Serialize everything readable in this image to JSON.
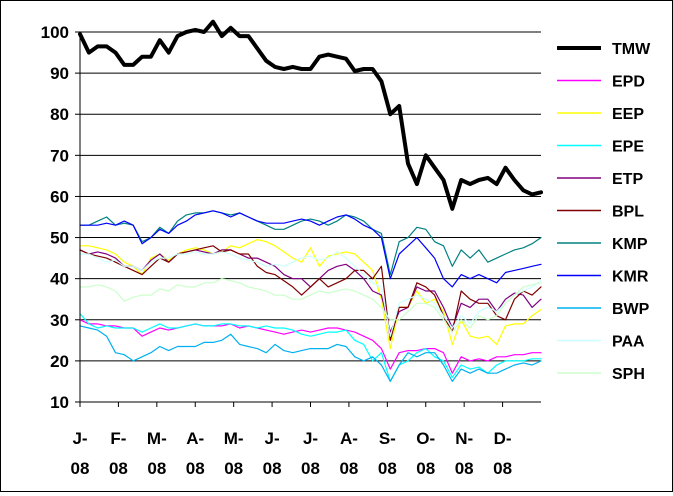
{
  "chart_data": {
    "type": "line",
    "title": "",
    "xlabel": "",
    "ylabel": "",
    "ylim": [
      10,
      100
    ],
    "yticks": [
      "10",
      "20",
      "30",
      "40",
      "50",
      "60",
      "70",
      "80",
      "90",
      "100"
    ],
    "xticks": [
      {
        "top": "J-",
        "bottom": "08"
      },
      {
        "top": "F-",
        "bottom": "08"
      },
      {
        "top": "M-",
        "bottom": "08"
      },
      {
        "top": "A-",
        "bottom": "08"
      },
      {
        "top": "M-",
        "bottom": "08"
      },
      {
        "top": "J-",
        "bottom": "08"
      },
      {
        "top": "J-",
        "bottom": "08"
      },
      {
        "top": "A-",
        "bottom": "08"
      },
      {
        "top": "S-",
        "bottom": "08"
      },
      {
        "top": "O-",
        "bottom": "08"
      },
      {
        "top": "N-",
        "bottom": "08"
      },
      {
        "top": "D-",
        "bottom": "08"
      }
    ],
    "grid": {
      "horizontal": true,
      "vertical": false
    },
    "legend_position": "right",
    "series": [
      {
        "name": "TMW",
        "color": "#000000",
        "width": 4,
        "values": [
          99.5,
          95,
          96.5,
          96.5,
          95,
          92,
          92,
          94,
          94,
          98,
          95,
          99,
          100,
          100.5,
          100,
          102.5,
          99,
          101,
          99,
          99,
          96,
          93,
          91.5,
          91,
          91.5,
          91,
          91,
          94,
          94.5,
          94,
          93.5,
          90.5,
          91,
          91,
          88,
          80,
          82,
          68,
          63,
          70,
          67,
          64,
          57,
          64,
          63,
          64,
          64.5,
          63,
          67,
          64,
          61.5,
          60.5,
          61
        ]
      },
      {
        "name": "EPD",
        "color": "#ff00ff",
        "width": 1.2,
        "values": [
          30,
          29,
          29,
          28.5,
          28.5,
          28,
          28,
          26,
          27,
          28,
          27.5,
          28,
          28.5,
          29,
          28.5,
          28.5,
          28.5,
          29,
          28,
          28.5,
          28,
          27.5,
          27,
          26.5,
          27,
          27.5,
          27,
          27.5,
          28,
          28,
          27.5,
          27,
          26,
          25,
          23,
          18,
          22,
          22.5,
          22.5,
          23,
          23,
          22,
          17,
          21,
          20,
          20.5,
          20,
          21,
          21,
          21.5,
          21.5,
          22,
          22
        ]
      },
      {
        "name": "EEP",
        "color": "#ffff00",
        "width": 1.2,
        "values": [
          48,
          48,
          47.5,
          47,
          46,
          44,
          43,
          41,
          45,
          46,
          44.5,
          46,
          47,
          47.5,
          47,
          46,
          46.5,
          48,
          47.5,
          48.5,
          49.5,
          49,
          48,
          46.5,
          45,
          44,
          47.5,
          43,
          45.5,
          46,
          46.5,
          46,
          44,
          42,
          35,
          23,
          33,
          33,
          37,
          34,
          35,
          32,
          24,
          30,
          26,
          25.5,
          26,
          24,
          28.5,
          29,
          29,
          31,
          32.5
        ]
      },
      {
        "name": "EPE",
        "color": "#00ffff",
        "width": 1.2,
        "values": [
          31.5,
          29,
          28,
          28.5,
          28,
          28,
          28,
          27,
          28,
          29,
          28,
          28,
          28.5,
          29,
          28.5,
          28.5,
          29,
          29,
          28.5,
          28.5,
          28,
          28.5,
          28,
          28,
          27.5,
          26.5,
          26,
          26.5,
          27,
          27,
          27.5,
          25,
          24,
          20,
          22,
          15,
          19,
          20,
          22,
          23,
          21,
          20,
          16,
          19,
          18,
          18.5,
          17,
          19,
          20,
          20,
          20,
          20.5,
          20.5
        ]
      },
      {
        "name": "ETP",
        "color": "#800080",
        "width": 1.2,
        "values": [
          47,
          46,
          46.5,
          46,
          45,
          43,
          43,
          42,
          44.5,
          46,
          44,
          46,
          46.5,
          47,
          46.5,
          46,
          47,
          47,
          46,
          45,
          45,
          44,
          43,
          41,
          40,
          40,
          38,
          40,
          42,
          43,
          43.5,
          42,
          40,
          37,
          36,
          27,
          32,
          33,
          38,
          37,
          37,
          33,
          28,
          34,
          33,
          35,
          35,
          32,
          35,
          36.5,
          36,
          33,
          35
        ]
      },
      {
        "name": "BPL",
        "color": "#800000",
        "width": 1.2,
        "values": [
          47,
          46,
          45.5,
          45,
          44,
          43,
          42,
          41,
          43,
          45,
          44,
          46,
          46.5,
          47,
          47.5,
          48,
          46.5,
          47,
          46,
          46,
          43,
          41.5,
          41,
          39.5,
          38,
          36,
          38,
          40,
          38,
          39,
          40,
          42,
          42,
          40,
          43,
          25,
          33,
          33,
          39,
          38,
          36,
          31,
          27,
          37,
          35,
          34,
          34,
          31,
          30,
          35,
          37,
          36,
          38
        ]
      },
      {
        "name": "KMP",
        "color": "#008080",
        "width": 1.2,
        "values": [
          53,
          53,
          54,
          55,
          53,
          53.5,
          53,
          49,
          50,
          52.5,
          51,
          54,
          55.5,
          56,
          56,
          56.5,
          56,
          55.5,
          56,
          55,
          54,
          53,
          52,
          52,
          53,
          54,
          54.5,
          54,
          53,
          54,
          55.5,
          55,
          54,
          52,
          51,
          41,
          49,
          50,
          52.5,
          52,
          49,
          48,
          43,
          47,
          45,
          47,
          44,
          45,
          46,
          47,
          47.5,
          48.5,
          50
        ]
      },
      {
        "name": "KMR",
        "color": "#0000ff",
        "width": 1.2,
        "values": [
          53,
          53,
          53,
          53.5,
          53,
          54,
          53,
          48.5,
          50,
          52,
          51,
          53,
          54,
          55.5,
          56,
          56.5,
          56,
          55,
          56,
          55,
          54,
          53.5,
          53.5,
          53.5,
          54,
          54.5,
          54,
          53,
          54,
          55,
          55.5,
          54.5,
          53,
          52,
          50,
          40,
          46,
          48,
          50,
          47.5,
          45,
          40,
          38,
          41,
          40,
          41,
          40,
          39,
          41.5,
          42,
          42.5,
          43,
          43.5
        ]
      },
      {
        "name": "BWP",
        "color": "#00b0f0",
        "width": 1.2,
        "values": [
          28.5,
          28,
          27.5,
          26,
          22,
          21.5,
          20,
          21,
          22,
          23.5,
          22.5,
          23.5,
          23.5,
          23.5,
          24.5,
          24.5,
          25,
          26.5,
          24,
          23.5,
          23,
          22,
          24,
          22.5,
          22,
          22.5,
          23,
          23,
          23,
          24,
          23.5,
          21,
          20,
          21,
          19,
          15,
          19,
          22,
          21,
          22,
          22,
          19,
          15,
          18,
          17,
          18,
          17,
          17,
          18,
          19,
          19.5,
          19,
          20
        ]
      },
      {
        "name": "PAA",
        "color": "#ccffff",
        "width": 1.2,
        "values": [
          46,
          46,
          45,
          44,
          44.5,
          43,
          43,
          42,
          44,
          45,
          45,
          46,
          46,
          46.5,
          46,
          46,
          46.5,
          46,
          45,
          44.5,
          44,
          43,
          43.5,
          43,
          44,
          45,
          45.5,
          44.5,
          45,
          46.5,
          45,
          43,
          41,
          39,
          38,
          26,
          34,
          35,
          36,
          35,
          34,
          31,
          28,
          31,
          29,
          32,
          33,
          32,
          34,
          36,
          37,
          38,
          39.5
        ]
      },
      {
        "name": "SPH",
        "color": "#ccffcc",
        "width": 1.2,
        "values": [
          38,
          38,
          38.5,
          38,
          37,
          34.5,
          35.5,
          36,
          36,
          37.5,
          37,
          38.5,
          38,
          38,
          39,
          39,
          40,
          39.5,
          39,
          38,
          37.5,
          37,
          36,
          36,
          35,
          35,
          36,
          37,
          36.5,
          37,
          37.5,
          37,
          36,
          35,
          33,
          30,
          30,
          32,
          34,
          34,
          33,
          30,
          27,
          30,
          28,
          31,
          30,
          31,
          34,
          36,
          38,
          38.5,
          39
        ]
      }
    ]
  }
}
